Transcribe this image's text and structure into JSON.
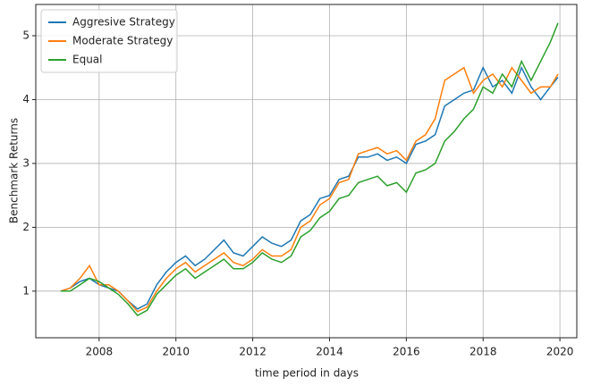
{
  "chart_data": {
    "type": "line",
    "xlabel": "time period in days",
    "ylabel": "Benchmark Returns",
    "x": [
      2007.0,
      2007.25,
      2007.5,
      2007.75,
      2008.0,
      2008.25,
      2008.5,
      2008.75,
      2009.0,
      2009.25,
      2009.5,
      2009.75,
      2010.0,
      2010.25,
      2010.5,
      2010.75,
      2011.0,
      2011.25,
      2011.5,
      2011.75,
      2012.0,
      2012.25,
      2012.5,
      2012.75,
      2013.0,
      2013.25,
      2013.5,
      2013.75,
      2014.0,
      2014.25,
      2014.5,
      2014.75,
      2015.0,
      2015.25,
      2015.5,
      2015.75,
      2016.0,
      2016.25,
      2016.5,
      2016.75,
      2017.0,
      2017.25,
      2017.5,
      2017.75,
      2018.0,
      2018.25,
      2018.5,
      2018.75,
      2019.0,
      2019.25,
      2019.5,
      2019.75,
      2019.95
    ],
    "series": [
      {
        "name": "Aggresive Strategy",
        "color": "#1f77b4",
        "values": [
          1.0,
          1.05,
          1.15,
          1.2,
          1.1,
          1.05,
          1.0,
          0.85,
          0.72,
          0.8,
          1.1,
          1.3,
          1.45,
          1.55,
          1.4,
          1.5,
          1.65,
          1.8,
          1.6,
          1.55,
          1.7,
          1.85,
          1.75,
          1.7,
          1.8,
          2.1,
          2.2,
          2.45,
          2.5,
          2.75,
          2.8,
          3.1,
          3.1,
          3.15,
          3.05,
          3.1,
          3.0,
          3.3,
          3.35,
          3.45,
          3.9,
          4.0,
          4.1,
          4.15,
          4.5,
          4.2,
          4.3,
          4.1,
          4.5,
          4.2,
          4.0,
          4.2,
          4.35
        ]
      },
      {
        "name": "Moderate Strategy",
        "color": "#ff7f0e",
        "values": [
          1.0,
          1.05,
          1.2,
          1.4,
          1.1,
          1.1,
          1.0,
          0.85,
          0.68,
          0.75,
          1.0,
          1.2,
          1.35,
          1.45,
          1.3,
          1.4,
          1.5,
          1.6,
          1.45,
          1.4,
          1.5,
          1.65,
          1.55,
          1.55,
          1.65,
          2.0,
          2.1,
          2.35,
          2.45,
          2.7,
          2.75,
          3.15,
          3.2,
          3.25,
          3.15,
          3.2,
          3.05,
          3.35,
          3.45,
          3.7,
          4.3,
          4.4,
          4.5,
          4.1,
          4.3,
          4.4,
          4.2,
          4.5,
          4.3,
          4.1,
          4.2,
          4.2,
          4.4
        ]
      },
      {
        "name": "Equal",
        "color": "#2ca02c",
        "values": [
          1.0,
          1.0,
          1.1,
          1.2,
          1.15,
          1.05,
          0.95,
          0.8,
          0.62,
          0.7,
          0.95,
          1.1,
          1.25,
          1.35,
          1.2,
          1.3,
          1.4,
          1.5,
          1.35,
          1.35,
          1.45,
          1.6,
          1.5,
          1.45,
          1.55,
          1.85,
          1.95,
          2.15,
          2.25,
          2.45,
          2.5,
          2.7,
          2.75,
          2.8,
          2.65,
          2.7,
          2.55,
          2.85,
          2.9,
          3.0,
          3.35,
          3.5,
          3.7,
          3.85,
          4.2,
          4.1,
          4.4,
          4.2,
          4.6,
          4.3,
          4.6,
          4.9,
          5.2
        ]
      }
    ],
    "xlim": [
      2006.35,
      2020.44
    ],
    "xticks": [
      2008,
      2010,
      2012,
      2014,
      2016,
      2018,
      2020
    ],
    "ylim": [
      0.27,
      5.49
    ],
    "yticks": [
      1,
      2,
      3,
      4,
      5
    ],
    "grid": true,
    "legend": "upper left"
  }
}
